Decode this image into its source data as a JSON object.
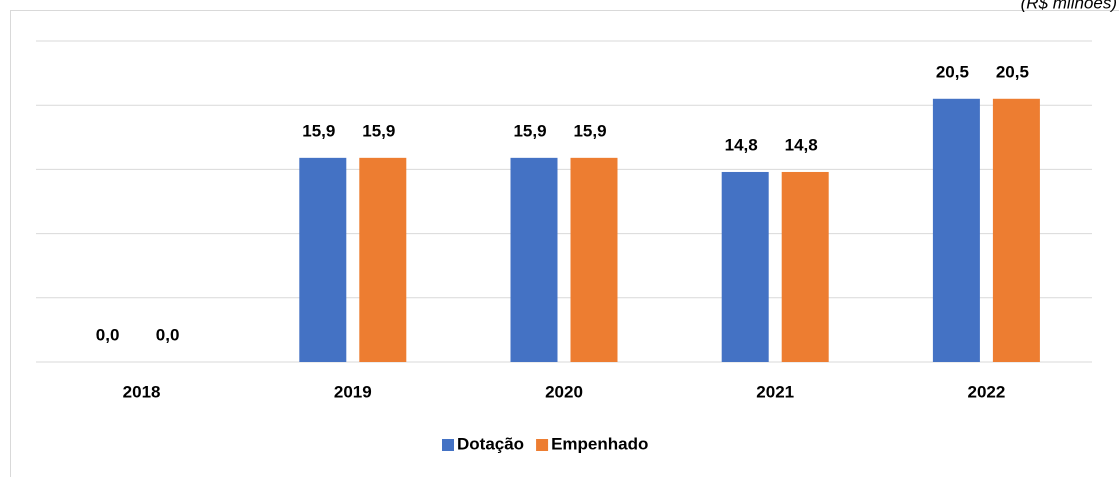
{
  "chart_data": {
    "type": "bar",
    "subtitle": "(R$ milhões)",
    "categories": [
      "2018",
      "2019",
      "2020",
      "2021",
      "2022"
    ],
    "series": [
      {
        "name": "Dotação",
        "color": "#4472c4",
        "values": [
          0,
          15.9,
          15.9,
          14.8,
          20.5
        ],
        "value_labels": [
          "0,0",
          "15,9",
          "15,9",
          "14,8",
          "20,5"
        ]
      },
      {
        "name": "Empenhado",
        "color": "#ed7d31",
        "values": [
          0,
          15.9,
          15.9,
          14.8,
          20.5
        ],
        "value_labels": [
          "0,0",
          "15,9",
          "15,9",
          "14,8",
          "20,5"
        ]
      }
    ],
    "ylim": [
      0,
      25
    ],
    "yticks": [
      0,
      5,
      10,
      15,
      20,
      25
    ],
    "grid": true,
    "legend": "bottom"
  }
}
